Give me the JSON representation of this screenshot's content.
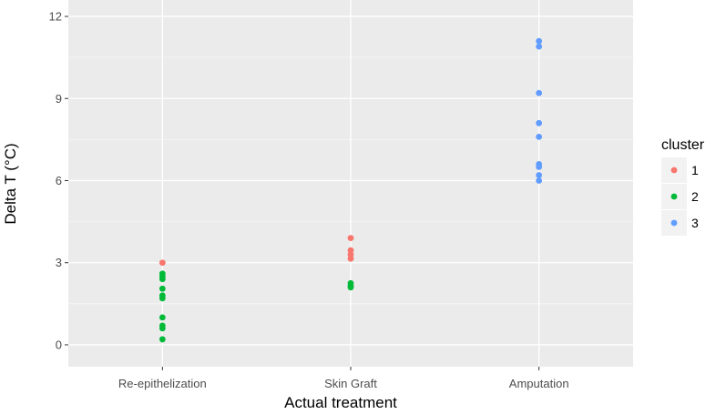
{
  "chart_data": {
    "type": "scatter",
    "title": "",
    "xlabel": "Actual treatment",
    "ylabel": "Delta T (°C)",
    "categories": [
      "Re-epithelization",
      "Skin Graft",
      "Amputation"
    ],
    "ylim": [
      -0.8,
      12.6
    ],
    "yticks": [
      0,
      3,
      6,
      9,
      12
    ],
    "grid": true,
    "legend": {
      "title": "cluster",
      "placement": "right",
      "entries": [
        {
          "label": "1",
          "color": "#F8766D"
        },
        {
          "label": "2",
          "color": "#00BA38"
        },
        {
          "label": "3",
          "color": "#619CFF"
        }
      ]
    },
    "series": [
      {
        "name": "1",
        "color": "#F8766D",
        "points": [
          {
            "x": "Re-epithelization",
            "y": 3.0
          },
          {
            "x": "Skin Graft",
            "y": 3.9
          },
          {
            "x": "Skin Graft",
            "y": 3.45
          },
          {
            "x": "Skin Graft",
            "y": 3.3
          },
          {
            "x": "Skin Graft",
            "y": 3.15
          }
        ]
      },
      {
        "name": "2",
        "color": "#00BA38",
        "points": [
          {
            "x": "Re-epithelization",
            "y": 2.6
          },
          {
            "x": "Re-epithelization",
            "y": 2.5
          },
          {
            "x": "Re-epithelization",
            "y": 2.4
          },
          {
            "x": "Re-epithelization",
            "y": 2.05
          },
          {
            "x": "Re-epithelization",
            "y": 1.8
          },
          {
            "x": "Re-epithelization",
            "y": 1.7
          },
          {
            "x": "Re-epithelization",
            "y": 1.0
          },
          {
            "x": "Re-epithelization",
            "y": 0.7
          },
          {
            "x": "Re-epithelization",
            "y": 0.6
          },
          {
            "x": "Re-epithelization",
            "y": 0.2
          },
          {
            "x": "Skin Graft",
            "y": 2.25
          },
          {
            "x": "Skin Graft",
            "y": 2.15
          },
          {
            "x": "Skin Graft",
            "y": 2.1
          }
        ]
      },
      {
        "name": "3",
        "color": "#619CFF",
        "points": [
          {
            "x": "Amputation",
            "y": 11.1
          },
          {
            "x": "Amputation",
            "y": 10.9
          },
          {
            "x": "Amputation",
            "y": 9.2
          },
          {
            "x": "Amputation",
            "y": 8.1
          },
          {
            "x": "Amputation",
            "y": 7.6
          },
          {
            "x": "Amputation",
            "y": 6.6
          },
          {
            "x": "Amputation",
            "y": 6.5
          },
          {
            "x": "Amputation",
            "y": 6.2
          },
          {
            "x": "Amputation",
            "y": 6.0
          }
        ]
      }
    ]
  }
}
